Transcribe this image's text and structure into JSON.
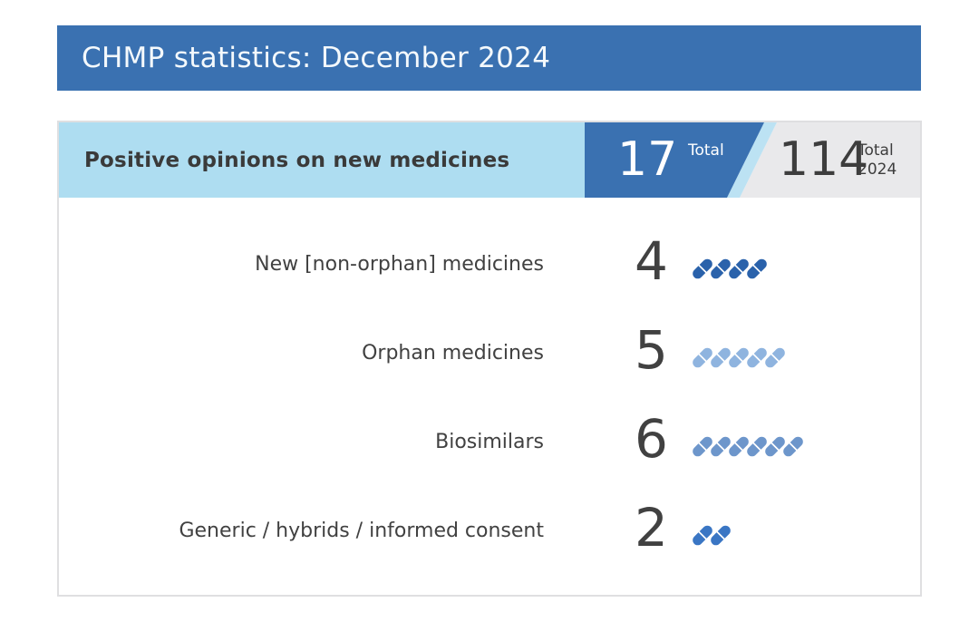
{
  "banner": {
    "title": "CHMP statistics: December 2024"
  },
  "card": {
    "header": {
      "label": "Positive opinions on new medicines",
      "month_total": {
        "value": "17",
        "caption": "Total"
      },
      "year_total": {
        "value": "114",
        "caption_line1": "Total",
        "caption_line2": "2024"
      }
    },
    "rows": [
      {
        "label": "New [non-orphan] medicines",
        "value": "4",
        "count": 4,
        "pill_color": "#2A62AB"
      },
      {
        "label": "Orphan medicines",
        "value": "5",
        "count": 5,
        "pill_color": "#8FB4DF"
      },
      {
        "label": "Biosimilars",
        "value": "6",
        "count": 6,
        "pill_color": "#6D96CB"
      },
      {
        "label": "Generic / hybrids / informed consent",
        "value": "2",
        "count": 2,
        "pill_color": "#3A76C4"
      }
    ]
  },
  "colors": {
    "banner_blue": "#3A71B1",
    "header_bg": "#AEDDF1",
    "badge_blue": "#3A71B1",
    "badge_slash": "#BCE2F3",
    "badge_gray": "#E9E9EB",
    "card_border": "#DFDFE1",
    "text_dark": "#414141",
    "text_white": "#F4F9FC"
  },
  "chart_data": {
    "type": "bar",
    "subtype": "pictogram-pills",
    "title": "CHMP statistics: December 2024",
    "section": "Positive opinions on new medicines",
    "categories": [
      "New [non-orphan] medicines",
      "Orphan medicines",
      "Biosimilars",
      "Generic / hybrids / informed consent"
    ],
    "values": [
      4,
      5,
      6,
      2
    ],
    "totals": {
      "month_total": 17,
      "year_total_2024": 114
    },
    "legend_position": "none",
    "grid": false
  }
}
